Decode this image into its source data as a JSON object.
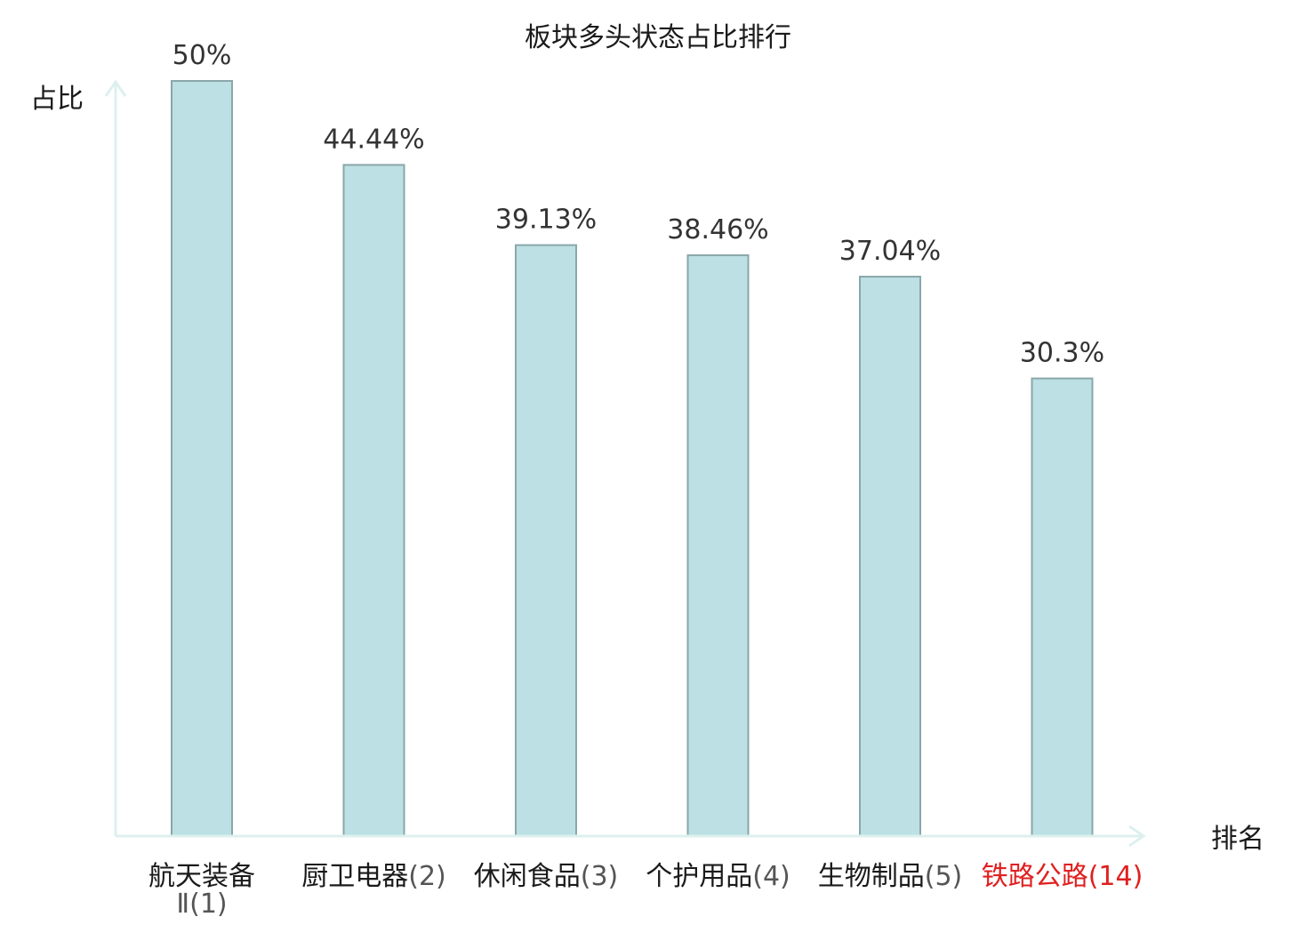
{
  "chart_data": {
    "type": "bar",
    "title": "板块多头状态占比排行",
    "ylabel": "占比",
    "xlabel": "排名",
    "ylim": [
      0,
      50
    ],
    "grid": false,
    "colors": {
      "bar_fill": "#bce0e3",
      "bar_stroke": "#8aa7aa",
      "axis": "#ddf0ee",
      "highlight_text": "#e02020"
    },
    "categories": [
      {
        "name": "航天装备Ⅱ",
        "rank": "(1)",
        "highlight": false
      },
      {
        "name": "厨卫电器",
        "rank": "(2)",
        "highlight": false
      },
      {
        "name": "休闲食品",
        "rank": "(3)",
        "highlight": false
      },
      {
        "name": "个护用品",
        "rank": "(4)",
        "highlight": false
      },
      {
        "name": "生物制品",
        "rank": "(5)",
        "highlight": false
      },
      {
        "name": "铁路公路",
        "rank": "(14)",
        "highlight": true
      }
    ],
    "values": [
      50,
      44.44,
      39.13,
      38.46,
      37.04,
      30.3
    ],
    "value_labels": [
      "50%",
      "44.44%",
      "39.13%",
      "38.46%",
      "37.04%",
      "30.3%"
    ]
  }
}
